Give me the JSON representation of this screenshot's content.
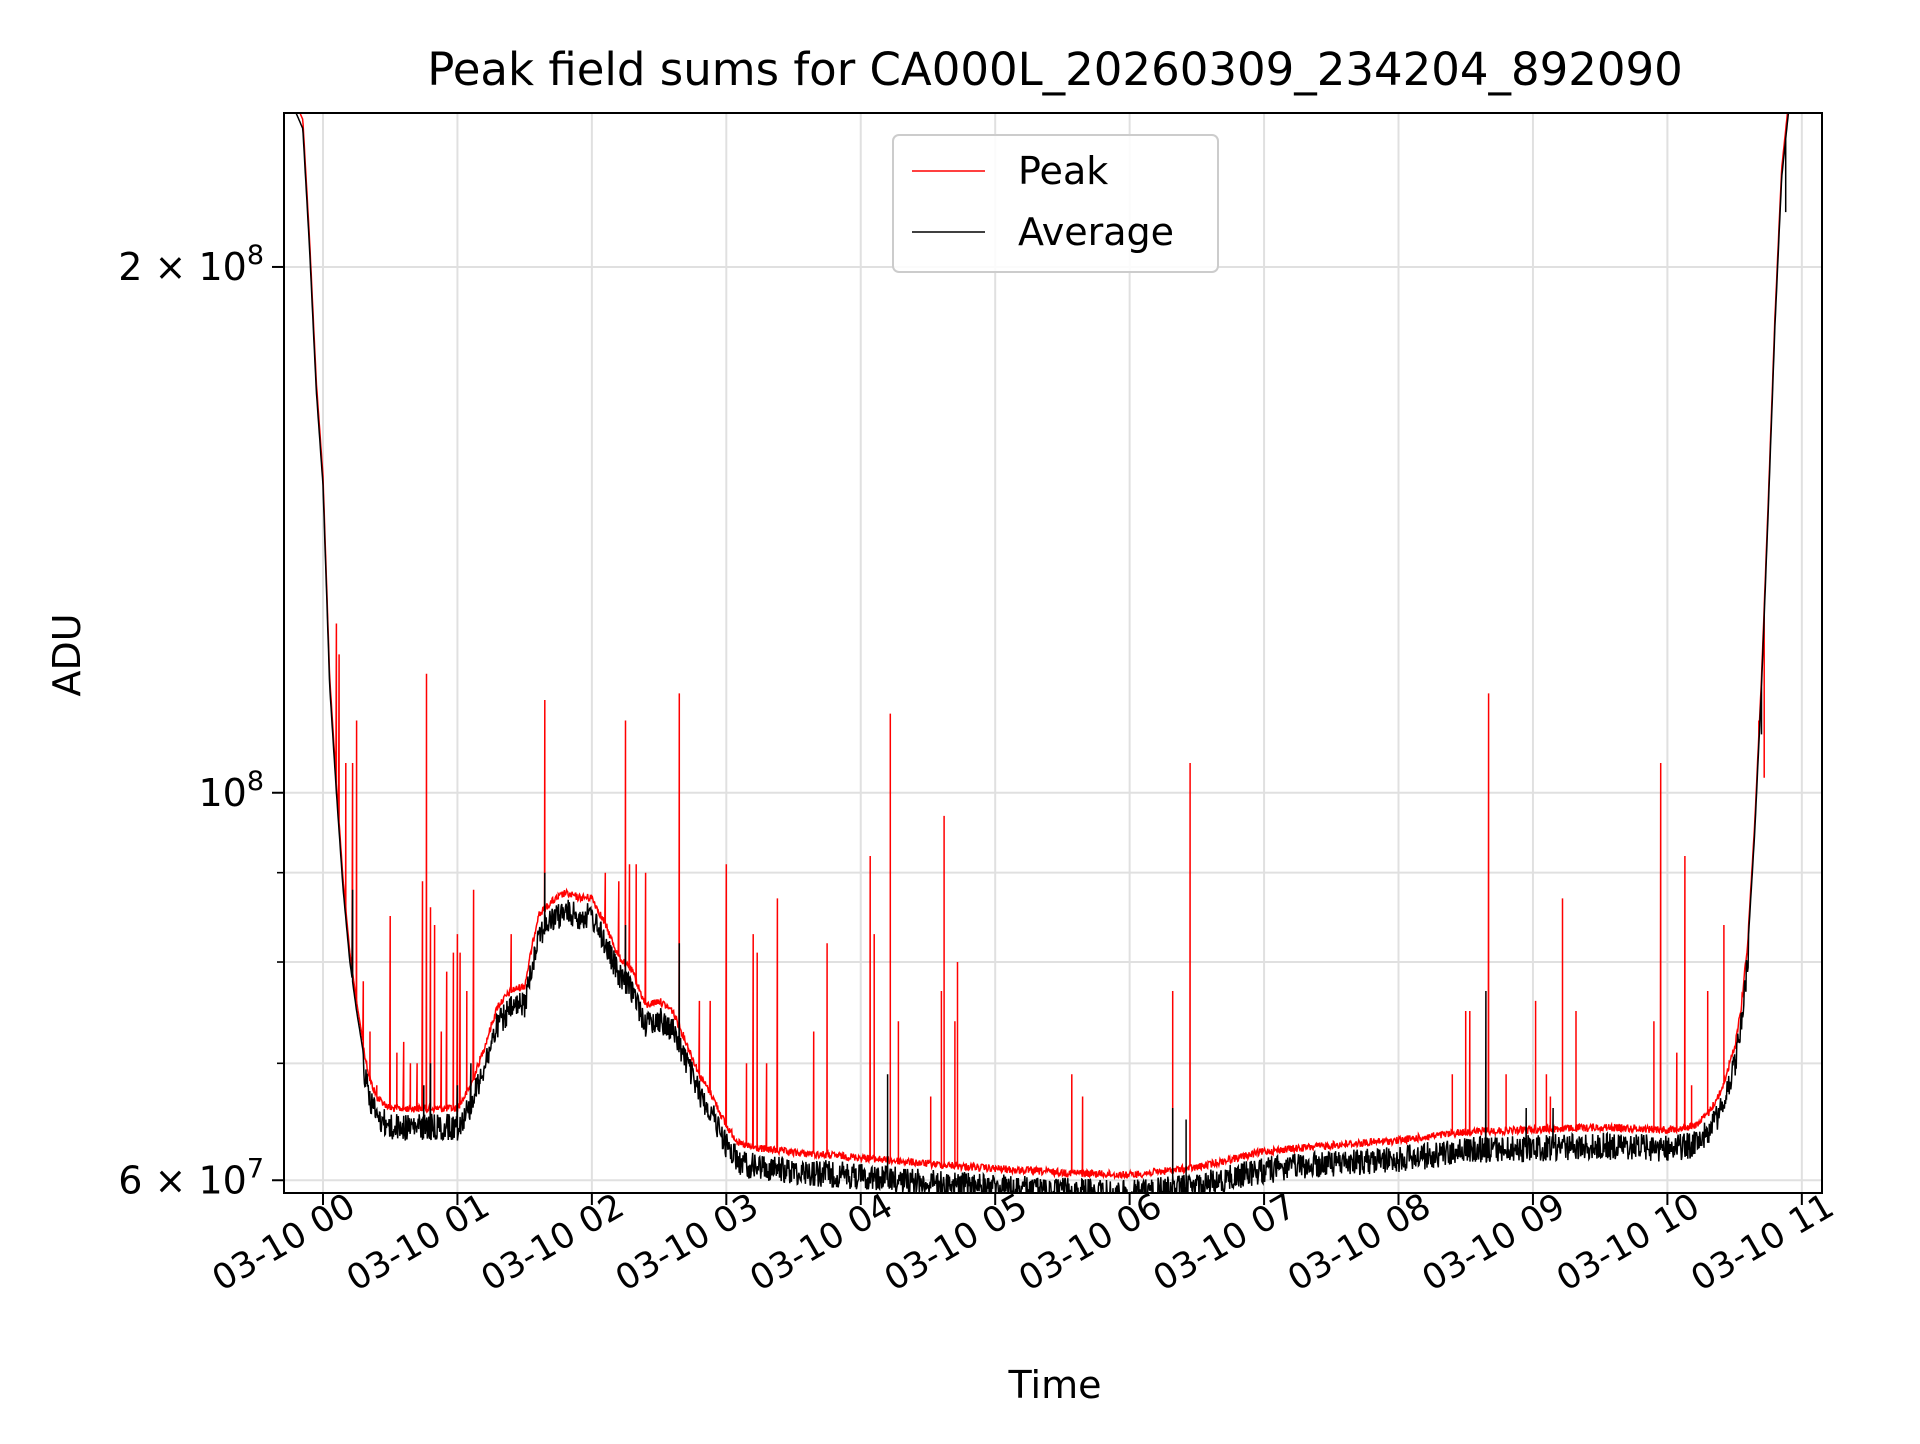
{
  "chart_data": {
    "type": "line",
    "title": "Peak field sums for CA000L_20260309_234204_892090",
    "xlabel": "Time",
    "ylabel": "ADU",
    "yscale": "log",
    "ylim": [
      59000000,
      245000000
    ],
    "xlim_hours": [
      -0.29,
      11.15
    ],
    "grid": true,
    "legend_position": "upper center",
    "colors": {
      "peak": "#ff0000",
      "average": "#000000",
      "grid": "#e0e0e0"
    },
    "x_ticks": [
      {
        "hour": 0,
        "label": "03-10 00"
      },
      {
        "hour": 1,
        "label": "03-10 01"
      },
      {
        "hour": 2,
        "label": "03-10 02"
      },
      {
        "hour": 3,
        "label": "03-10 03"
      },
      {
        "hour": 4,
        "label": "03-10 04"
      },
      {
        "hour": 5,
        "label": "03-10 05"
      },
      {
        "hour": 6,
        "label": "03-10 06"
      },
      {
        "hour": 7,
        "label": "03-10 07"
      },
      {
        "hour": 8,
        "label": "03-10 08"
      },
      {
        "hour": 9,
        "label": "03-10 09"
      },
      {
        "hour": 10,
        "label": "03-10 10"
      },
      {
        "hour": 11,
        "label": "03-10 11"
      }
    ],
    "y_ticks_major": [
      {
        "value": 60000000,
        "mantissa": "6",
        "times": "×",
        "base": "10",
        "exp": "7"
      },
      {
        "value": 100000000,
        "mantissa": "",
        "times": "",
        "base": "10",
        "exp": "8"
      },
      {
        "value": 200000000,
        "mantissa": "2",
        "times": "×",
        "base": "10",
        "exp": "8"
      }
    ],
    "y_ticks_minor": [
      70000000,
      80000000,
      90000000
    ],
    "series": [
      {
        "name": "Average",
        "color": "#000000",
        "baseline_hours": [
          -0.28,
          -0.2,
          -0.15,
          -0.1,
          -0.05,
          0.0,
          0.05,
          0.1,
          0.15,
          0.2,
          0.25,
          0.3,
          0.35,
          0.4,
          0.5,
          0.6,
          0.7,
          0.8,
          0.9,
          1.0,
          1.1,
          1.2,
          1.3,
          1.4,
          1.5,
          1.6,
          1.7,
          1.8,
          1.9,
          2.0,
          2.1,
          2.2,
          2.3,
          2.4,
          2.5,
          2.6,
          2.7,
          2.8,
          2.9,
          3.0,
          3.1,
          3.2,
          3.5,
          4.0,
          4.5,
          5.0,
          5.5,
          6.0,
          6.5,
          7.0,
          7.5,
          8.0,
          8.5,
          9.0,
          9.5,
          10.0,
          10.2,
          10.3,
          10.4,
          10.5,
          10.55,
          10.6,
          10.65,
          10.7,
          10.75,
          10.8,
          10.85,
          10.9,
          10.95,
          11.0
        ],
        "baseline_values": [
          245000000,
          245000000,
          240000000,
          205000000,
          170000000,
          150000000,
          115000000,
          100000000,
          88000000,
          80000000,
          75000000,
          71000000,
          68000000,
          66500000,
          65500000,
          65500000,
          65500000,
          65500000,
          65500000,
          65500000,
          67500000,
          71000000,
          75000000,
          76500000,
          77000000,
          84500000,
          86000000,
          87000000,
          86500000,
          86500000,
          83500000,
          80000000,
          78500000,
          75000000,
          75500000,
          74500000,
          71500000,
          68500000,
          66500000,
          64000000,
          62500000,
          62200000,
          61800000,
          61400000,
          60900000,
          60500000,
          60200000,
          60000000,
          60600000,
          61900000,
          62400000,
          62800000,
          63500000,
          63700000,
          63900000,
          63700000,
          64000000,
          65000000,
          67000000,
          71000000,
          75000000,
          82000000,
          95000000,
          115000000,
          145000000,
          185000000,
          225000000,
          245000000,
          245000000,
          245000000
        ],
        "spikes": [
          {
            "hour": 0.22,
            "value": 88000000
          },
          {
            "hour": 0.75,
            "value": 68000000
          },
          {
            "hour": 0.8,
            "value": 70000000
          },
          {
            "hour": 1.0,
            "value": 68000000
          },
          {
            "hour": 1.1,
            "value": 70000000
          },
          {
            "hour": 1.65,
            "value": 90000000
          },
          {
            "hour": 2.25,
            "value": 84000000
          },
          {
            "hour": 2.65,
            "value": 82000000
          },
          {
            "hour": 4.2,
            "value": 69000000
          },
          {
            "hour": 6.32,
            "value": 66000000
          },
          {
            "hour": 6.42,
            "value": 65000000
          },
          {
            "hour": 8.65,
            "value": 77000000
          },
          {
            "hour": 8.95,
            "value": 66000000
          },
          {
            "hour": 9.15,
            "value": 66000000
          },
          {
            "hour": 10.7,
            "value": 108000000
          },
          {
            "hour": 10.88,
            "value": 215000000
          }
        ]
      },
      {
        "name": "Peak",
        "color": "#ff0000",
        "offset_ratio": 1.012,
        "spikes": [
          {
            "hour": 0.1,
            "value": 125000000
          },
          {
            "hour": 0.12,
            "value": 120000000
          },
          {
            "hour": 0.17,
            "value": 104000000
          },
          {
            "hour": 0.22,
            "value": 104000000
          },
          {
            "hour": 0.25,
            "value": 110000000
          },
          {
            "hour": 0.3,
            "value": 78000000
          },
          {
            "hour": 0.35,
            "value": 73000000
          },
          {
            "hour": 0.4,
            "value": 68000000
          },
          {
            "hour": 0.5,
            "value": 85000000
          },
          {
            "hour": 0.55,
            "value": 71000000
          },
          {
            "hour": 0.6,
            "value": 72000000
          },
          {
            "hour": 0.65,
            "value": 70000000
          },
          {
            "hour": 0.7,
            "value": 70000000
          },
          {
            "hour": 0.74,
            "value": 89000000
          },
          {
            "hour": 0.77,
            "value": 117000000
          },
          {
            "hour": 0.8,
            "value": 86000000
          },
          {
            "hour": 0.83,
            "value": 84000000
          },
          {
            "hour": 0.88,
            "value": 73000000
          },
          {
            "hour": 0.92,
            "value": 79000000
          },
          {
            "hour": 0.97,
            "value": 81000000
          },
          {
            "hour": 1.0,
            "value": 83000000
          },
          {
            "hour": 1.02,
            "value": 81000000
          },
          {
            "hour": 1.07,
            "value": 77000000
          },
          {
            "hour": 1.12,
            "value": 88000000
          },
          {
            "hour": 1.4,
            "value": 83000000
          },
          {
            "hour": 1.65,
            "value": 113000000
          },
          {
            "hour": 1.75,
            "value": 87000000
          },
          {
            "hour": 2.1,
            "value": 90000000
          },
          {
            "hour": 2.2,
            "value": 89000000
          },
          {
            "hour": 2.25,
            "value": 110000000
          },
          {
            "hour": 2.28,
            "value": 91000000
          },
          {
            "hour": 2.33,
            "value": 91000000
          },
          {
            "hour": 2.4,
            "value": 90000000
          },
          {
            "hour": 2.65,
            "value": 114000000
          },
          {
            "hour": 2.8,
            "value": 76000000
          },
          {
            "hour": 2.88,
            "value": 76000000
          },
          {
            "hour": 3.0,
            "value": 91000000
          },
          {
            "hour": 3.15,
            "value": 70000000
          },
          {
            "hour": 3.2,
            "value": 83000000
          },
          {
            "hour": 3.23,
            "value": 81000000
          },
          {
            "hour": 3.3,
            "value": 70000000
          },
          {
            "hour": 3.38,
            "value": 87000000
          },
          {
            "hour": 3.65,
            "value": 73000000
          },
          {
            "hour": 3.75,
            "value": 82000000
          },
          {
            "hour": 4.07,
            "value": 92000000
          },
          {
            "hour": 4.1,
            "value": 83000000
          },
          {
            "hour": 4.22,
            "value": 111000000
          },
          {
            "hour": 4.28,
            "value": 74000000
          },
          {
            "hour": 4.52,
            "value": 67000000
          },
          {
            "hour": 4.6,
            "value": 77000000
          },
          {
            "hour": 4.62,
            "value": 97000000
          },
          {
            "hour": 4.7,
            "value": 74000000
          },
          {
            "hour": 4.72,
            "value": 80000000
          },
          {
            "hour": 5.57,
            "value": 69000000
          },
          {
            "hour": 5.65,
            "value": 67000000
          },
          {
            "hour": 6.32,
            "value": 77000000
          },
          {
            "hour": 6.45,
            "value": 104000000
          },
          {
            "hour": 8.4,
            "value": 69000000
          },
          {
            "hour": 8.5,
            "value": 75000000
          },
          {
            "hour": 8.53,
            "value": 75000000
          },
          {
            "hour": 8.67,
            "value": 114000000
          },
          {
            "hour": 8.8,
            "value": 69000000
          },
          {
            "hour": 9.02,
            "value": 76000000
          },
          {
            "hour": 9.1,
            "value": 69000000
          },
          {
            "hour": 9.13,
            "value": 67000000
          },
          {
            "hour": 9.22,
            "value": 87000000
          },
          {
            "hour": 9.32,
            "value": 75000000
          },
          {
            "hour": 9.9,
            "value": 74000000
          },
          {
            "hour": 9.95,
            "value": 104000000
          },
          {
            "hour": 10.07,
            "value": 71000000
          },
          {
            "hour": 10.13,
            "value": 92000000
          },
          {
            "hour": 10.18,
            "value": 68000000
          },
          {
            "hour": 10.3,
            "value": 77000000
          },
          {
            "hour": 10.42,
            "value": 84000000
          },
          {
            "hour": 10.68,
            "value": 110000000
          },
          {
            "hour": 10.72,
            "value": 102000000
          }
        ]
      }
    ]
  }
}
